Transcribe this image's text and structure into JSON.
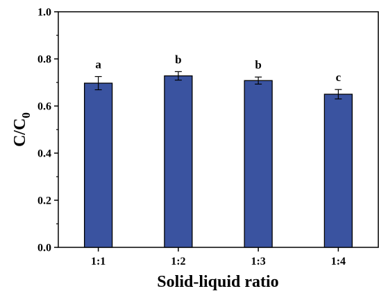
{
  "chart_data": {
    "type": "bar",
    "title": "",
    "xlabel": "Solid-liquid ratio",
    "ylabel": {
      "main": "C/C",
      "sub": "0"
    },
    "categories": [
      "1:1",
      "1:2",
      "1:3",
      "1:4"
    ],
    "values": [
      0.697,
      0.728,
      0.708,
      0.65
    ],
    "errors": [
      0.028,
      0.018,
      0.015,
      0.02
    ],
    "significance": [
      "a",
      "b",
      "b",
      "c"
    ],
    "ylim": [
      0,
      1.0
    ],
    "yticks": [
      "0.0",
      "0.2",
      "0.4",
      "0.6",
      "0.8",
      "1.0"
    ],
    "bar_color": "#3a53a0",
    "grid": false,
    "legend": "none"
  }
}
